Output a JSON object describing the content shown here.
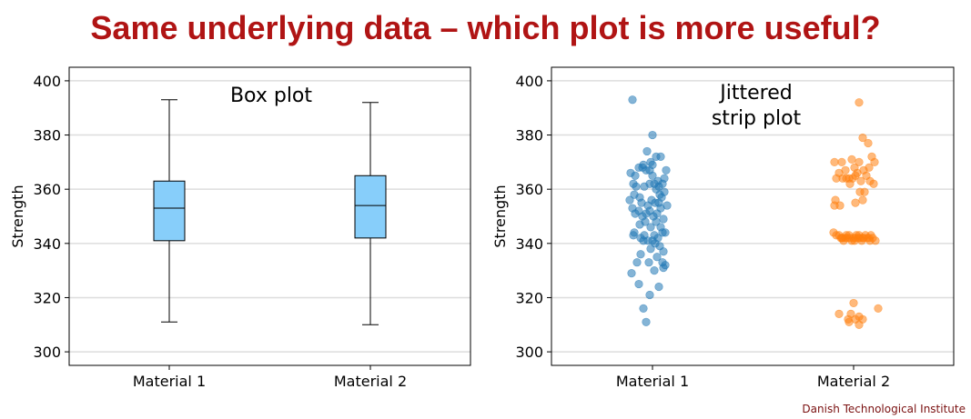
{
  "page": {
    "title": "Same underlying data – which plot is more useful?",
    "credit": "Danish Technological Institute",
    "title_color": "#b01414",
    "credit_color": "#7a1010"
  },
  "chart_data": [
    {
      "type": "box",
      "title": "Box plot",
      "ylabel": "Strength",
      "ylim": [
        295,
        405
      ],
      "yticks": [
        300,
        320,
        340,
        360,
        380,
        400
      ],
      "grid": "horizontal",
      "categories": [
        "Material 1",
        "Material 2"
      ],
      "box_color": "#87cefa",
      "boxes": [
        {
          "category": "Material 1",
          "min": 311,
          "q1": 341,
          "median": 353,
          "q3": 363,
          "max": 393
        },
        {
          "category": "Material 2",
          "min": 310,
          "q1": 342,
          "median": 354,
          "q3": 365,
          "max": 392
        }
      ]
    },
    {
      "type": "scatter",
      "title": "Jittered\nstrip plot",
      "ylabel": "Strength",
      "ylim": [
        295,
        405
      ],
      "yticks": [
        300,
        320,
        340,
        360,
        380,
        400
      ],
      "grid": "horizontal",
      "categories": [
        "Material 1",
        "Material 2"
      ],
      "series": [
        {
          "category": "Material 1",
          "color": "#1f77b4",
          "points": [
            [
              -0.22,
              393
            ],
            [
              0.0,
              380
            ],
            [
              -0.06,
              374
            ],
            [
              0.04,
              372
            ],
            [
              0.09,
              372
            ],
            [
              -0.02,
              370
            ],
            [
              -0.1,
              369
            ],
            [
              0.0,
              369
            ],
            [
              -0.15,
              368
            ],
            [
              -0.11,
              368
            ],
            [
              -0.07,
              367
            ],
            [
              -0.03,
              367
            ],
            [
              0.15,
              367
            ],
            [
              -0.24,
              366
            ],
            [
              -0.19,
              365
            ],
            [
              0.0,
              365
            ],
            [
              0.13,
              364
            ],
            [
              0.06,
              363
            ],
            [
              0.11,
              362
            ],
            [
              0.02,
              362
            ],
            [
              -0.03,
              362
            ],
            [
              -0.21,
              362
            ],
            [
              -0.18,
              361
            ],
            [
              -0.09,
              361
            ],
            [
              0.07,
              361
            ],
            [
              0.04,
              360
            ],
            [
              0.13,
              359
            ],
            [
              0.08,
              358
            ],
            [
              -0.2,
              358
            ],
            [
              -0.14,
              357
            ],
            [
              0.1,
              357
            ],
            [
              -0.01,
              356
            ],
            [
              -0.25,
              356
            ],
            [
              0.03,
              355
            ],
            [
              -0.12,
              355
            ],
            [
              0.07,
              355
            ],
            [
              -0.05,
              354
            ],
            [
              0.16,
              354
            ],
            [
              -0.22,
              353
            ],
            [
              0.09,
              353
            ],
            [
              -0.15,
              352
            ],
            [
              -0.03,
              352
            ],
            [
              0.05,
              351
            ],
            [
              -0.07,
              351
            ],
            [
              -0.19,
              351
            ],
            [
              0.01,
              350
            ],
            [
              -0.11,
              350
            ],
            [
              0.12,
              349
            ],
            [
              -0.08,
              348
            ],
            [
              0.04,
              348
            ],
            [
              -0.14,
              347
            ],
            [
              -0.02,
              346
            ],
            [
              0.09,
              346
            ],
            [
              -0.2,
              344
            ],
            [
              0.11,
              344
            ],
            [
              0.14,
              344
            ],
            [
              -0.21,
              343
            ],
            [
              -0.09,
              343
            ],
            [
              0.02,
              343
            ],
            [
              -0.13,
              342
            ],
            [
              0.06,
              342
            ],
            [
              -0.05,
              341
            ],
            [
              0.0,
              341
            ],
            [
              -0.1,
              341
            ],
            [
              0.03,
              340
            ],
            [
              0.08,
              339
            ],
            [
              -0.02,
              338
            ],
            [
              0.12,
              337
            ],
            [
              -0.13,
              336
            ],
            [
              0.05,
              335
            ],
            [
              0.11,
              333
            ],
            [
              0.14,
              332
            ],
            [
              -0.17,
              333
            ],
            [
              -0.04,
              333
            ],
            [
              0.12,
              331
            ],
            [
              0.02,
              330
            ],
            [
              -0.23,
              329
            ],
            [
              -0.15,
              325
            ],
            [
              0.07,
              324
            ],
            [
              -0.03,
              321
            ],
            [
              -0.1,
              316
            ],
            [
              -0.07,
              311
            ]
          ]
        },
        {
          "category": "Material 2",
          "color": "#ff7f0e",
          "points": [
            [
              0.06,
              392
            ],
            [
              0.1,
              379
            ],
            [
              0.16,
              377
            ],
            [
              0.2,
              372
            ],
            [
              -0.02,
              371
            ],
            [
              -0.13,
              370
            ],
            [
              0.06,
              370
            ],
            [
              -0.21,
              370
            ],
            [
              0.23,
              370
            ],
            [
              0.17,
              368
            ],
            [
              0.01,
              368
            ],
            [
              -0.09,
              367
            ],
            [
              0.11,
              367
            ],
            [
              -0.16,
              366
            ],
            [
              0.04,
              366
            ],
            [
              0.14,
              365
            ],
            [
              0.02,
              365
            ],
            [
              -0.05,
              364
            ],
            [
              -0.08,
              364
            ],
            [
              -0.01,
              364
            ],
            [
              -0.19,
              364
            ],
            [
              -0.12,
              364
            ],
            [
              0.08,
              363
            ],
            [
              0.18,
              363
            ],
            [
              0.22,
              362
            ],
            [
              -0.04,
              362
            ],
            [
              0.12,
              359
            ],
            [
              0.07,
              359
            ],
            [
              -0.2,
              356
            ],
            [
              0.1,
              356
            ],
            [
              0.02,
              355
            ],
            [
              -0.21,
              354
            ],
            [
              -0.15,
              354
            ],
            [
              -0.22,
              344
            ],
            [
              -0.19,
              343
            ],
            [
              -0.16,
              343
            ],
            [
              -0.14,
              342
            ],
            [
              -0.12,
              342
            ],
            [
              -0.11,
              341
            ],
            [
              -0.09,
              342
            ],
            [
              -0.07,
              342
            ],
            [
              -0.05,
              343
            ],
            [
              -0.04,
              342
            ],
            [
              -0.02,
              341
            ],
            [
              0.0,
              342
            ],
            [
              0.02,
              342
            ],
            [
              0.03,
              343
            ],
            [
              0.05,
              342
            ],
            [
              0.07,
              342
            ],
            [
              0.09,
              341
            ],
            [
              0.11,
              342
            ],
            [
              0.13,
              343
            ],
            [
              0.15,
              342
            ],
            [
              0.17,
              342
            ],
            [
              0.19,
              343
            ],
            [
              0.21,
              342
            ],
            [
              0.24,
              341
            ],
            [
              -0.08,
              343
            ],
            [
              0.01,
              341
            ],
            [
              0.06,
              343
            ],
            [
              -0.13,
              342
            ],
            [
              0.18,
              341
            ],
            [
              0.1,
              342
            ],
            [
              0.0,
              318
            ],
            [
              0.27,
              316
            ],
            [
              -0.16,
              314
            ],
            [
              -0.03,
              314
            ],
            [
              0.06,
              313
            ],
            [
              -0.06,
              312
            ],
            [
              0.02,
              312
            ],
            [
              0.1,
              312
            ],
            [
              -0.05,
              311
            ],
            [
              0.06,
              310
            ]
          ]
        }
      ]
    }
  ]
}
